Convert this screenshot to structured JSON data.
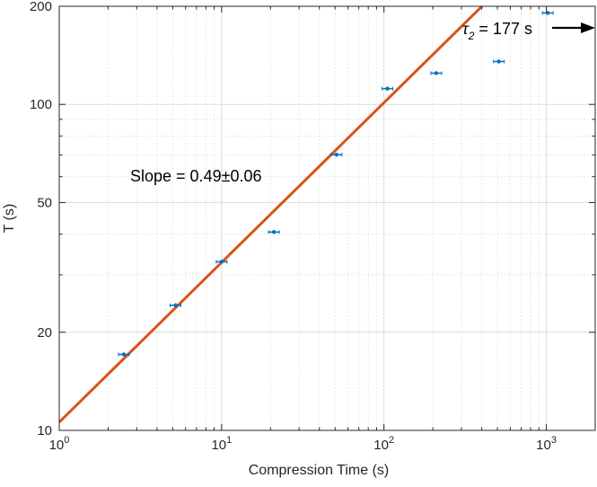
{
  "chart_data": {
    "type": "scatter",
    "x_scale": "log",
    "y_scale": "log",
    "xlabel": "Compression Time (s)",
    "ylabel": "T (s)",
    "xlim": [
      1,
      2000
    ],
    "ylim": [
      10,
      200
    ],
    "x_ticks": [
      {
        "value": 1,
        "base": "10",
        "exp": "0"
      },
      {
        "value": 10,
        "base": "10",
        "exp": "1"
      },
      {
        "value": 100,
        "base": "10",
        "exp": "2"
      },
      {
        "value": 1000,
        "base": "10",
        "exp": "3"
      }
    ],
    "y_ticks": [
      {
        "value": 10,
        "label": "10"
      },
      {
        "value": 20,
        "label": "20"
      },
      {
        "value": 50,
        "label": "50"
      },
      {
        "value": 100,
        "label": "100"
      },
      {
        "value": 200,
        "label": "200"
      }
    ],
    "grid": true,
    "series": [
      {
        "type": "scatter_errorbar",
        "color": "#0072BD",
        "points": [
          {
            "x": 2.5,
            "y": 17.1
          },
          {
            "x": 5.2,
            "y": 24.2
          },
          {
            "x": 10,
            "y": 32.9
          },
          {
            "x": 21,
            "y": 40.6
          },
          {
            "x": 51,
            "y": 70.1
          },
          {
            "x": 105,
            "y": 111.8
          },
          {
            "x": 210,
            "y": 124.7
          },
          {
            "x": 510,
            "y": 135.4
          },
          {
            "x": 1020,
            "y": 190.8
          }
        ]
      },
      {
        "type": "fit_line",
        "color": "#D95319",
        "intercept_at_x1": 10.6,
        "slope": 0.49
      }
    ],
    "annotations": [
      {
        "id": "slope",
        "text": "Slope = 0.49±0.06"
      },
      {
        "id": "tau2",
        "symbol": "τ",
        "subscript": "2",
        "text": " = 177 s"
      }
    ]
  }
}
